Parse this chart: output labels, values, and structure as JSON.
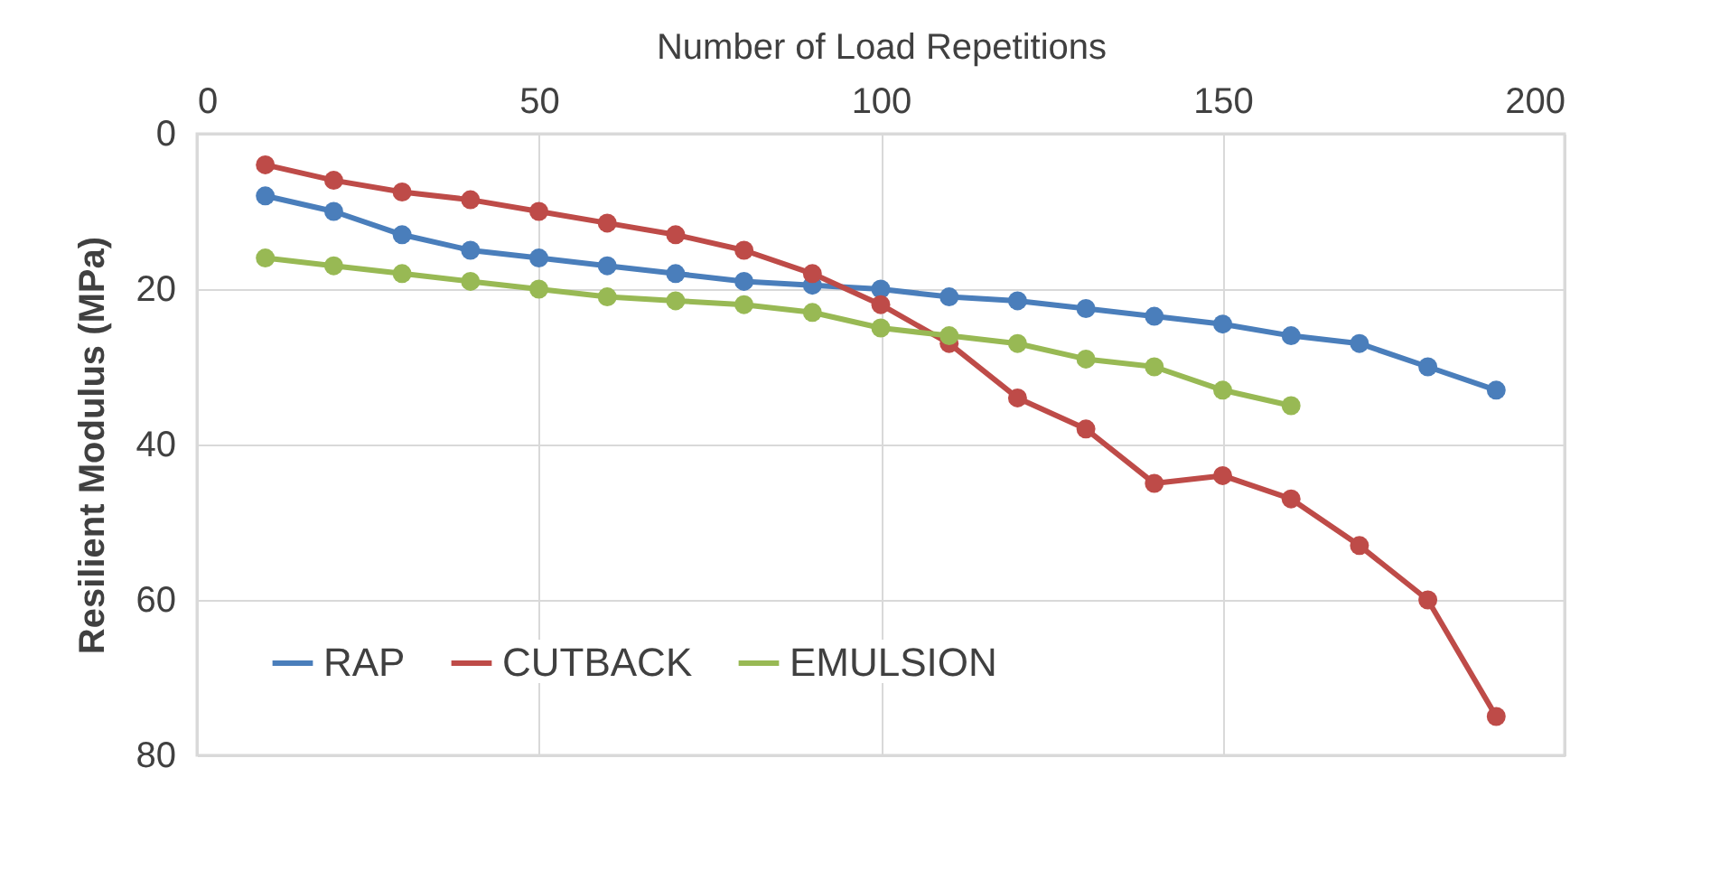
{
  "chart_data": {
    "type": "line",
    "xlabel": "Number of Load Repetitions",
    "ylabel": "Resilient Modulus (MPa)",
    "xlim": [
      0,
      200
    ],
    "xticks": [
      0,
      50,
      100,
      150,
      200
    ],
    "ylim": [
      80,
      0
    ],
    "yticks": [
      0,
      20,
      40,
      60,
      80
    ],
    "grid": true,
    "legend": "bottom left",
    "marker": "circle",
    "line_style": "solid",
    "series": [
      {
        "name": "RAP",
        "color": "#4a7ebb",
        "x": [
          10,
          20,
          30,
          40,
          50,
          60,
          70,
          80,
          90,
          100,
          110,
          120,
          130,
          140,
          150,
          160,
          170,
          180,
          190
        ],
        "values": [
          8,
          10,
          13,
          15,
          16,
          17,
          18,
          19,
          19.5,
          20,
          21,
          21.5,
          22.5,
          23.5,
          24.5,
          26,
          27,
          30,
          33
        ]
      },
      {
        "name": "CUTBACK",
        "color": "#be4b48",
        "x": [
          10,
          20,
          30,
          40,
          50,
          60,
          70,
          80,
          90,
          100,
          110,
          120,
          130,
          140,
          150,
          160,
          170,
          180,
          190
        ],
        "values": [
          4,
          6,
          7.5,
          8.5,
          10,
          11.5,
          13,
          15,
          18,
          22,
          27,
          34,
          38,
          45,
          44,
          47,
          53,
          60,
          75
        ]
      },
      {
        "name": "EMULSION",
        "color": "#98b954",
        "x": [
          10,
          20,
          30,
          40,
          50,
          60,
          70,
          80,
          90,
          100,
          110,
          120,
          130,
          140,
          150,
          160
        ],
        "values": [
          16,
          17,
          18,
          19,
          20,
          21,
          21.5,
          22,
          23,
          25,
          26,
          27,
          29,
          30,
          33,
          35
        ]
      }
    ]
  }
}
